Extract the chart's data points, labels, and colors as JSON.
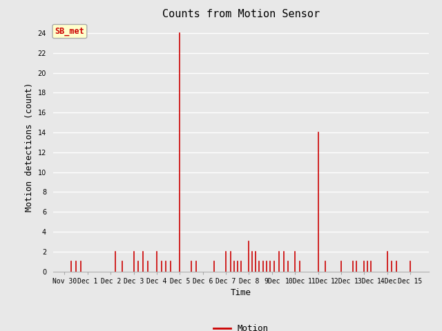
{
  "title": "Counts from Motion Sensor",
  "ylabel": "Motion detections (count)",
  "xlabel": "Time",
  "legend_label": "Motion",
  "line_color": "#cc0000",
  "bg_color": "#e8e8e8",
  "plot_bg_color": "#e8e8e8",
  "annotation_label": "SB_met",
  "annotation_bg": "#ffffcc",
  "annotation_border": "#aaaaaa",
  "annotation_text_color": "#cc0000",
  "ylim": [
    0,
    25
  ],
  "yticks": [
    0,
    2,
    4,
    6,
    8,
    10,
    12,
    14,
    16,
    18,
    20,
    22,
    24
  ],
  "data_points": [
    [
      0.3,
      1
    ],
    [
      0.5,
      1
    ],
    [
      0.7,
      1
    ],
    [
      2.2,
      2
    ],
    [
      2.5,
      1
    ],
    [
      3.0,
      2
    ],
    [
      3.2,
      1
    ],
    [
      3.4,
      2
    ],
    [
      3.6,
      1
    ],
    [
      4.0,
      2
    ],
    [
      4.2,
      1
    ],
    [
      4.4,
      1
    ],
    [
      4.6,
      1
    ],
    [
      5.0,
      24
    ],
    [
      5.5,
      1
    ],
    [
      5.7,
      1
    ],
    [
      6.5,
      1
    ],
    [
      7.0,
      2
    ],
    [
      7.2,
      2
    ],
    [
      7.35,
      1
    ],
    [
      7.5,
      1
    ],
    [
      7.65,
      1
    ],
    [
      8.0,
      3
    ],
    [
      8.15,
      2
    ],
    [
      8.3,
      2
    ],
    [
      8.45,
      1
    ],
    [
      8.6,
      1
    ],
    [
      8.75,
      1
    ],
    [
      8.9,
      1
    ],
    [
      9.1,
      1
    ],
    [
      9.3,
      2
    ],
    [
      9.5,
      2
    ],
    [
      9.7,
      1
    ],
    [
      10.0,
      2
    ],
    [
      10.2,
      1
    ],
    [
      11.0,
      14
    ],
    [
      11.3,
      1
    ],
    [
      12.0,
      1
    ],
    [
      12.5,
      1
    ],
    [
      12.65,
      1
    ],
    [
      13.0,
      1
    ],
    [
      13.15,
      1
    ],
    [
      13.3,
      1
    ],
    [
      14.0,
      2
    ],
    [
      14.2,
      1
    ],
    [
      14.4,
      1
    ],
    [
      15.0,
      1
    ]
  ],
  "xtick_positions": [
    0,
    1,
    2,
    3,
    4,
    5,
    6,
    7,
    8,
    9,
    10,
    11,
    12,
    13,
    14,
    15
  ],
  "xtick_labels": [
    "Nov 30",
    "Dec 1",
    "Dec 2",
    "Dec 3",
    "Dec 4",
    "Dec 5",
    "Dec 6",
    "Dec 7",
    "Dec 8",
    "9Dec",
    "10Dec",
    "11Dec",
    "12Dec",
    "13Dec",
    "14Dec",
    "Dec 15"
  ],
  "font_family": "monospace",
  "title_fontsize": 11,
  "label_fontsize": 9,
  "tick_fontsize": 7,
  "xlim_left": -0.5,
  "xlim_right": 15.8
}
